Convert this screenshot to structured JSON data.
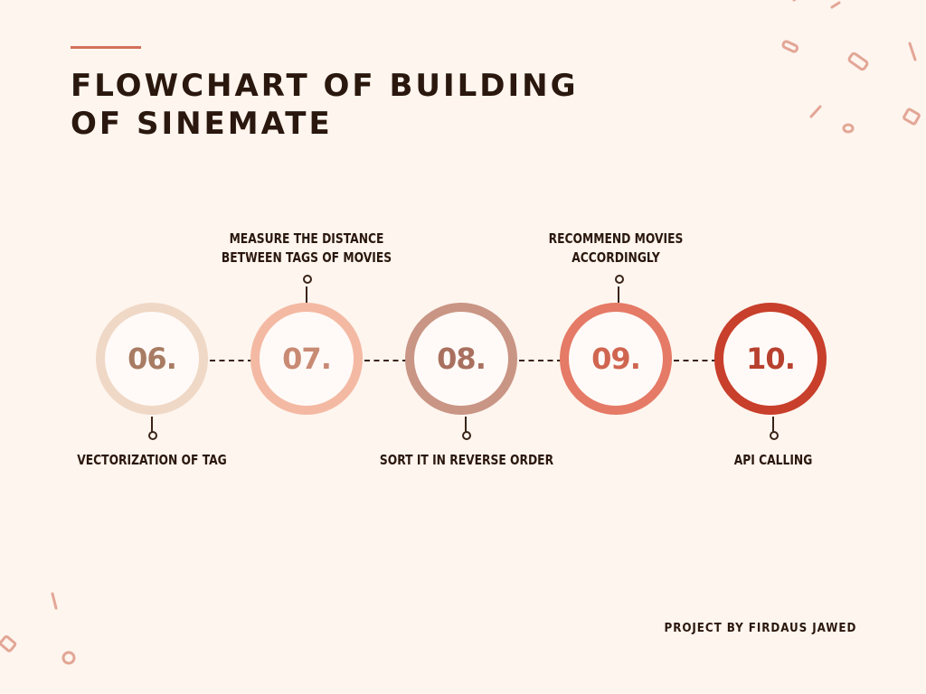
{
  "title_lines": [
    "FLOWCHART OF BUILDING",
    "OF SINEMATE"
  ],
  "steps": [
    {
      "number": "06.",
      "label_lines": [
        "VECTORIZATION OF TAG"
      ],
      "label_position": "below",
      "ring_color": "#f0d8c6",
      "number_color": "#a87c63"
    },
    {
      "number": "07.",
      "label_lines": [
        "MEASURE THE DISTANCE",
        "BETWEEN TAGS OF MOVIES"
      ],
      "label_position": "above",
      "ring_color": "#f4b9a3",
      "number_color": "#c98a74"
    },
    {
      "number": "08.",
      "label_lines": [
        "SORT IT IN REVERSE ORDER"
      ],
      "label_position": "below",
      "ring_color": "#c99585",
      "number_color": "#a9705f"
    },
    {
      "number": "09.",
      "label_lines": [
        "RECOMMEND MOVIES",
        "ACCORDINGLY"
      ],
      "label_position": "above",
      "ring_color": "#e57a66",
      "number_color": "#d06550"
    },
    {
      "number": "10.",
      "label_lines": [
        "API CALLING"
      ],
      "label_position": "below",
      "ring_color": "#c83f2b",
      "number_color": "#b8402e"
    }
  ],
  "credit": "PROJECT BY FIRDAUS JAWED",
  "colors": {
    "background": "#fdf5ee",
    "text": "#2a170d",
    "accent": "#d4705a",
    "confetti": "#e3a696"
  }
}
